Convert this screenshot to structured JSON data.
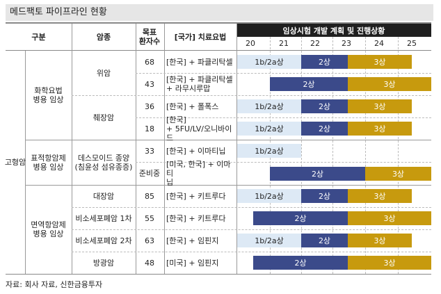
{
  "title": "메드팩토 파이프라인 현황",
  "headers": {
    "category": "구분",
    "cancer": "암종",
    "patients": "목표\n환자수",
    "regimen": "[국가] 치료요법",
    "timeline": "임상시험 개발 계획 및 진행상황"
  },
  "years": [
    "20",
    "21",
    "22",
    "23",
    "24",
    "25"
  ],
  "categories": {
    "main": "고형암",
    "chemo": "화학요법\n병용 임상",
    "targeted": "표적항암제\n병용 임상",
    "immuno": "면역항암제\n병용 임상"
  },
  "rows": [
    {
      "cancer": "위암",
      "patients": "68",
      "regimen": "[한국] + 파클리탁셀"
    },
    {
      "cancer": "",
      "patients": "43",
      "regimen": "[한국] + 파클리탁셀\n+ 라무시루맙"
    },
    {
      "cancer": "췌장암",
      "patients": "36",
      "regimen": "[한국] + 폴폭스"
    },
    {
      "cancer": "",
      "patients": "18",
      "regimen": "[한국]\n+ 5FU/LV/오니바이드"
    },
    {
      "cancer": "데스모이드 종양\n(침윤성 섬유종증)",
      "patients": "33",
      "regimen": "[한국] + 이마티닙"
    },
    {
      "cancer": "",
      "patients": "준비중",
      "regimen": "[미국, 한국] + 이마티\n닙"
    },
    {
      "cancer": "대장암",
      "patients": "85",
      "regimen": "[한국] + 키트루다"
    },
    {
      "cancer": "비소세포폐암 1차",
      "patients": "55",
      "regimen": "[한국] + 키트루다"
    },
    {
      "cancer": "비소세포폐암 2차",
      "patients": "63",
      "regimen": "[한국] + 임핀지"
    },
    {
      "cancer": "방광암",
      "patients": "48",
      "regimen": "[미국] + 임핀지"
    }
  ],
  "bars": {
    "r0": [
      "1b/2a상",
      "2상",
      "3상"
    ],
    "r1": [
      "2상",
      "3상"
    ],
    "r2": [
      "1b/2a상",
      "2상",
      "3상"
    ],
    "r3": [
      "1b/2a상",
      "2상",
      "3상"
    ],
    "r4": [
      "1b/2a상"
    ],
    "r5": [
      "2상",
      "3상"
    ],
    "r6": [
      "1b/2a상",
      "2상",
      "3상"
    ],
    "r7": [
      "2상",
      "3상"
    ],
    "r8": [
      "1b/2a상",
      "2상",
      "3상"
    ],
    "r9": [
      "2상",
      "3상"
    ]
  },
  "colors": {
    "phase1": "#dde9f5",
    "phase2": "#3b4a8a",
    "phase3": "#c79a0e",
    "header": "#1f1f1f"
  },
  "source": "자료: 회사 자료, 신한금융투자"
}
